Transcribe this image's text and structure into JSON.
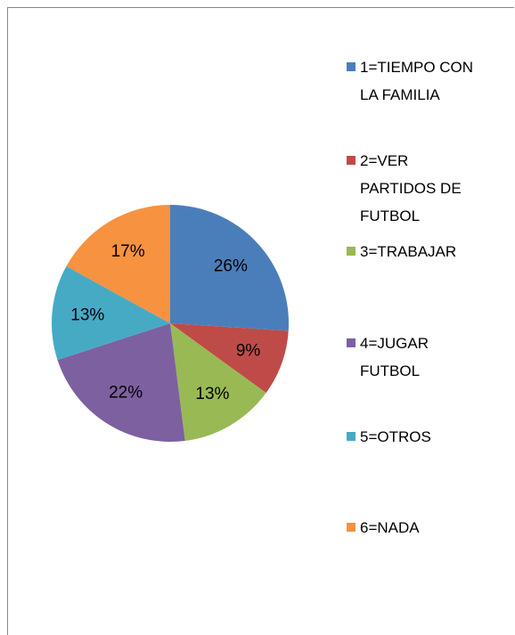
{
  "chart_data": {
    "type": "pie",
    "categories": [
      "1=TIEMPO CON LA FAMILIA",
      "2=VER PARTIDOS DE FUTBOL",
      "3=TRABAJAR",
      "4=JUGAR FUTBOL",
      "5=OTROS",
      "6=NADA"
    ],
    "values": [
      26,
      9,
      13,
      22,
      13,
      17
    ],
    "value_labels": [
      "26%",
      "9%",
      "13%",
      "22%",
      "13%",
      "17%"
    ],
    "colors": [
      "#4a7ebb",
      "#be4b48",
      "#98b954",
      "#7d60a0",
      "#46aac5",
      "#f69240"
    ],
    "legend": "right"
  }
}
